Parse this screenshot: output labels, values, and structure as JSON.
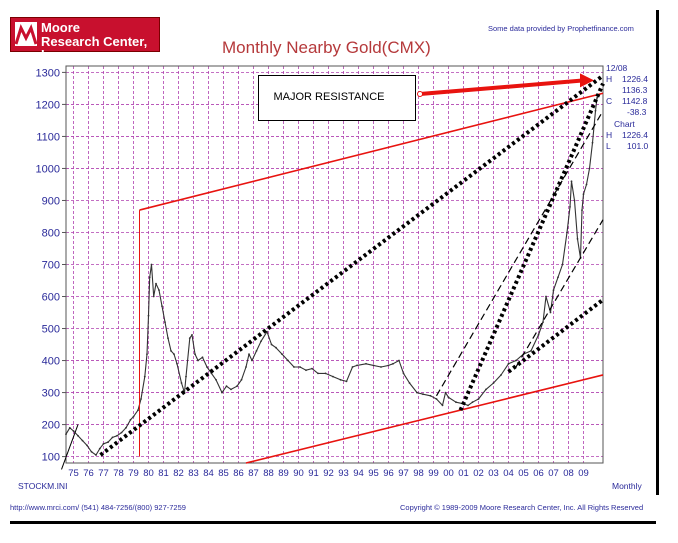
{
  "header": {
    "logo_line1": "Moore",
    "logo_line2": "Research Center, Inc.",
    "title": "Monthly Nearby Gold(CMX)",
    "provider": "Some data provided by Prophetfinance.com"
  },
  "annotation": {
    "label": "MAJOR RESISTANCE"
  },
  "quote_panel": {
    "date": "12/08",
    "high_letter": "H",
    "high": "1226.4",
    "low_value": "1136.3",
    "close_letter": "C",
    "close": "1142.8",
    "change": "-38.3",
    "chart_label": "Chart",
    "chart_high_letter": "H",
    "chart_high": "1226.4",
    "chart_low_letter": "L",
    "chart_low": "101.0"
  },
  "footer": {
    "file_id": "STOCKM.INI",
    "period": "Monthly",
    "left": "http://www.mrci.com/   (541) 484-7256/(800) 927-7259",
    "right": "Copyright © 1989-2009 Moore Research Center, Inc. All Rights Reserved"
  },
  "colors": {
    "price_line": "#333333",
    "grid": "#b040b0",
    "trendline": "#e8130f",
    "dotted_channel": "#000000",
    "title": "#b5393b",
    "label_text": "#2a2a9a"
  },
  "chart_data": {
    "type": "line",
    "title": "Monthly Nearby Gold(CMX)",
    "xlabel": "",
    "ylabel": "",
    "xlim": [
      1974.5,
      2010.3
    ],
    "ylim": [
      80,
      1320
    ],
    "x_ticks": [
      "75",
      "76",
      "77",
      "78",
      "79",
      "80",
      "81",
      "82",
      "83",
      "84",
      "85",
      "86",
      "87",
      "88",
      "89",
      "90",
      "91",
      "92",
      "93",
      "94",
      "95",
      "96",
      "97",
      "98",
      "99",
      "00",
      "01",
      "02",
      "03",
      "04",
      "05",
      "06",
      "07",
      "08",
      "09"
    ],
    "y_ticks": [
      100,
      200,
      300,
      400,
      500,
      600,
      700,
      800,
      900,
      1000,
      1100,
      1200,
      1300
    ],
    "grid": true,
    "series": [
      {
        "x": [
          1974.5,
          1974.75,
          1975.0,
          1975.3,
          1975.6,
          1975.9,
          1976.2,
          1976.5,
          1976.75,
          1977.0,
          1977.3,
          1977.6,
          1977.9,
          1978.2,
          1978.5,
          1978.8,
          1979.0,
          1979.3,
          1979.5,
          1979.75,
          1979.9,
          1980.0,
          1980.08,
          1980.2,
          1980.35,
          1980.5,
          1980.7,
          1980.9,
          1981.1,
          1981.3,
          1981.5,
          1981.7,
          1981.9,
          1982.2,
          1982.4,
          1982.5,
          1982.75,
          1982.9,
          1983.1,
          1983.3,
          1983.6,
          1983.9,
          1984.2,
          1984.5,
          1984.9,
          1985.2,
          1985.5,
          1985.9,
          1986.2,
          1986.5,
          1986.7,
          1986.9,
          1987.2,
          1987.5,
          1987.9,
          1988.2,
          1988.5,
          1988.9,
          1989.3,
          1989.7,
          1990.1,
          1990.5,
          1990.9,
          1991.3,
          1991.8,
          1992.3,
          1992.8,
          1993.2,
          1993.6,
          1993.9,
          1994.5,
          1995.0,
          1995.5,
          1996.0,
          1996.3,
          1996.7,
          1997.0,
          1997.4,
          1997.9,
          1998.3,
          1998.8,
          1999.2,
          1999.6,
          1999.8,
          2000.0,
          2000.5,
          2001.0,
          2001.3,
          2001.6,
          2002.0,
          2002.5,
          2003.0,
          2003.5,
          2004.0,
          2004.5,
          2005.0,
          2005.5,
          2006.0,
          2006.3,
          2006.5,
          2006.8,
          2007.0,
          2007.3,
          2007.6,
          2007.9,
          2008.1,
          2008.2,
          2008.4,
          2008.6,
          2008.8,
          2008.9,
          2009.0,
          2009.2,
          2009.4,
          2009.6,
          2009.8,
          2009.9,
          2010.0
        ],
        "values": [
          170,
          190,
          180,
          165,
          150,
          135,
          115,
          105,
          125,
          140,
          145,
          160,
          165,
          175,
          190,
          215,
          225,
          245,
          280,
          350,
          420,
          540,
          660,
          700,
          600,
          640,
          620,
          570,
          520,
          470,
          430,
          420,
          390,
          330,
          300,
          350,
          470,
          480,
          420,
          400,
          410,
          380,
          360,
          340,
          300,
          320,
          310,
          320,
          340,
          380,
          420,
          400,
          430,
          460,
          490,
          450,
          440,
          420,
          400,
          380,
          380,
          370,
          375,
          360,
          360,
          350,
          340,
          335,
          380,
          385,
          390,
          385,
          380,
          385,
          390,
          400,
          360,
          330,
          300,
          295,
          290,
          280,
          260,
          300,
          285,
          270,
          265,
          260,
          270,
          280,
          310,
          330,
          355,
          390,
          400,
          420,
          430,
          480,
          520,
          600,
          550,
          620,
          660,
          700,
          800,
          880,
          960,
          900,
          780,
          720,
          870,
          920,
          950,
          1000,
          1080,
          1180,
          1220,
          1226
        ]
      }
    ]
  }
}
